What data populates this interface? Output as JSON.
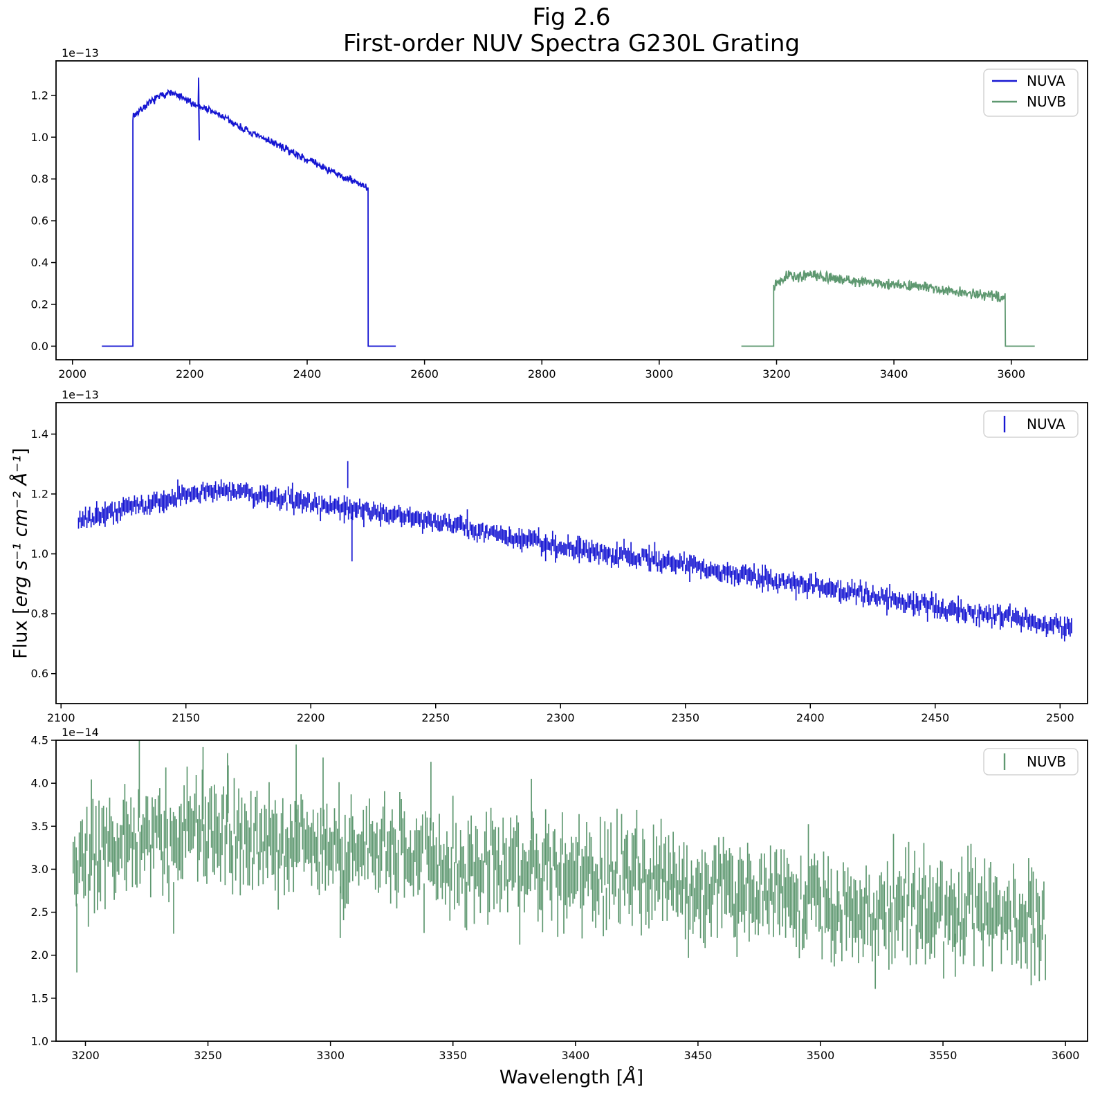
{
  "figure": {
    "title_line1": "Fig 2.6",
    "title_line2": "First-order NUV Spectra G230L Grating",
    "ylabel": {
      "prefix": "Flux [",
      "math": "erg s⁻¹ cm⁻² Å⁻¹",
      "suffix": "]"
    },
    "xlabel": {
      "prefix": "Wavelength [",
      "math": "Å",
      "suffix": "]"
    }
  },
  "colors": {
    "nuva": "#1616d2",
    "nuvb": "#5e9870",
    "legend_edge": "#d4d4d4",
    "axes": "#000000"
  },
  "chart_data": [
    {
      "name": "overview",
      "type": "line",
      "title": "",
      "xlim": [
        1972,
        3730
      ],
      "ylim": [
        -0.065,
        1.365
      ],
      "offset_label": "1e−13",
      "grid": false,
      "x_ticks": [
        {
          "v": 2000,
          "t": "2000"
        },
        {
          "v": 2200,
          "t": "2200"
        },
        {
          "v": 2400,
          "t": "2400"
        },
        {
          "v": 2600,
          "t": "2600"
        },
        {
          "v": 2800,
          "t": "2800"
        },
        {
          "v": 3000,
          "t": "3000"
        },
        {
          "v": 3200,
          "t": "3200"
        },
        {
          "v": 3400,
          "t": "3400"
        },
        {
          "v": 3600,
          "t": "3600"
        }
      ],
      "y_ticks": [
        {
          "v": 0.0,
          "t": "0.0"
        },
        {
          "v": 0.2,
          "t": "0.2"
        },
        {
          "v": 0.4,
          "t": "0.4"
        },
        {
          "v": 0.6,
          "t": "0.6"
        },
        {
          "v": 0.8,
          "t": "0.8"
        },
        {
          "v": 1.0,
          "t": "1.0"
        },
        {
          "v": 1.2,
          "t": "1.2"
        }
      ],
      "legend": {
        "position": "upper right",
        "entries": [
          {
            "label": "NUVA",
            "marker": "line",
            "color": "#1616d2"
          },
          {
            "label": "NUVB",
            "marker": "line",
            "color": "#5e9870"
          }
        ]
      },
      "series": [
        {
          "name": "NUVA",
          "style": "line",
          "color": "#1616d2",
          "seed": 7,
          "noise": 0.022,
          "dx": 0.8,
          "segments": [
            {
              "type": "flat",
              "x0": 2050,
              "x1": 2103,
              "y": 0.0
            },
            {
              "type": "env",
              "x0": 2103,
              "x1": 2504,
              "anchors": [
                [
                  2103,
                  1.1
                ],
                [
                  2107,
                  1.11
                ],
                [
                  2125,
                  1.15
                ],
                [
                  2145,
                  1.19
                ],
                [
                  2165,
                  1.215
                ],
                [
                  2185,
                  1.19
                ],
                [
                  2205,
                  1.16
                ],
                [
                  2225,
                  1.14
                ],
                [
                  2255,
                  1.1
                ],
                [
                  2285,
                  1.05
                ],
                [
                  2310,
                  1.01
                ],
                [
                  2335,
                  0.985
                ],
                [
                  2365,
                  0.94
                ],
                [
                  2395,
                  0.9
                ],
                [
                  2425,
                  0.86
                ],
                [
                  2455,
                  0.815
                ],
                [
                  2485,
                  0.785
                ],
                [
                  2504,
                  0.75
                ]
              ],
              "spikes": [
                {
                  "x": 2215,
                  "hi": 1.285,
                  "lo": 0.985
                }
              ]
            },
            {
              "type": "flat",
              "x0": 2504,
              "x1": 2551,
              "y": 0.0
            }
          ]
        },
        {
          "name": "NUVB",
          "style": "line",
          "color": "#5e9870",
          "seed": 13,
          "noise": 0.03,
          "dx": 0.8,
          "segments": [
            {
              "type": "flat",
              "x0": 3140,
              "x1": 3195,
              "y": 0.0
            },
            {
              "type": "env",
              "x0": 3195,
              "x1": 3590,
              "anchors": [
                [
                  3195,
                  0.295
                ],
                [
                  3205,
                  0.315
                ],
                [
                  3218,
                  0.34
                ],
                [
                  3235,
                  0.33
                ],
                [
                  3255,
                  0.34
                ],
                [
                  3275,
                  0.335
                ],
                [
                  3290,
                  0.325
                ],
                [
                  3310,
                  0.32
                ],
                [
                  3335,
                  0.31
                ],
                [
                  3365,
                  0.305
                ],
                [
                  3395,
                  0.295
                ],
                [
                  3425,
                  0.29
                ],
                [
                  3455,
                  0.28
                ],
                [
                  3490,
                  0.265
                ],
                [
                  3520,
                  0.255
                ],
                [
                  3555,
                  0.245
                ],
                [
                  3590,
                  0.235
                ]
              ],
              "spikes": []
            },
            {
              "type": "flat",
              "x0": 3590,
              "x1": 3640,
              "y": 0.0
            }
          ]
        }
      ]
    },
    {
      "name": "nuva-detail",
      "type": "errorbar",
      "title": "",
      "xlim": [
        2098,
        2511
      ],
      "ylim": [
        0.5,
        1.505
      ],
      "offset_label": "1e−13",
      "grid": false,
      "x_ticks": [
        {
          "v": 2100,
          "t": "2100"
        },
        {
          "v": 2150,
          "t": "2150"
        },
        {
          "v": 2200,
          "t": "2200"
        },
        {
          "v": 2250,
          "t": "2250"
        },
        {
          "v": 2300,
          "t": "2300"
        },
        {
          "v": 2350,
          "t": "2350"
        },
        {
          "v": 2400,
          "t": "2400"
        },
        {
          "v": 2450,
          "t": "2450"
        },
        {
          "v": 2500,
          "t": "2500"
        }
      ],
      "y_ticks": [
        {
          "v": 0.6,
          "t": "0.6"
        },
        {
          "v": 0.8,
          "t": "0.8"
        },
        {
          "v": 1.0,
          "t": "1.0"
        },
        {
          "v": 1.2,
          "t": "1.2"
        },
        {
          "v": 1.4,
          "t": "1.4"
        }
      ],
      "legend": {
        "position": "upper right",
        "entries": [
          {
            "label": "NUVA",
            "marker": "vbar",
            "color": "#1616d2"
          }
        ]
      },
      "series": [
        {
          "name": "NUVA",
          "style": "bars",
          "color": "#1616d2",
          "seed": 21,
          "x0": 2107,
          "x1": 2505,
          "dx": 0.56,
          "center_noise": 0.022,
          "err_base": 0.013,
          "err_var": 0.014,
          "err_spike_p": 0.05,
          "err_spike": 0.02,
          "anchors": [
            [
              2107,
              1.11
            ],
            [
              2125,
              1.15
            ],
            [
              2145,
              1.19
            ],
            [
              2165,
              1.215
            ],
            [
              2185,
              1.19
            ],
            [
              2205,
              1.16
            ],
            [
              2225,
              1.14
            ],
            [
              2255,
              1.1
            ],
            [
              2285,
              1.05
            ],
            [
              2310,
              1.01
            ],
            [
              2335,
              0.985
            ],
            [
              2365,
              0.94
            ],
            [
              2395,
              0.9
            ],
            [
              2425,
              0.86
            ],
            [
              2455,
              0.815
            ],
            [
              2485,
              0.785
            ],
            [
              2505,
              0.745
            ]
          ],
          "spikes": [
            {
              "x": 2214.8,
              "c": 1.265,
              "e": 0.045
            },
            {
              "x": 2216.5,
              "c": 1.05,
              "e": 0.075
            }
          ]
        }
      ]
    },
    {
      "name": "nuvb-detail",
      "type": "errorbar",
      "title": "",
      "xlim": [
        3188,
        3609
      ],
      "ylim": [
        1.0,
        4.5
      ],
      "offset_label": "1e−14",
      "grid": false,
      "x_ticks": [
        {
          "v": 3200,
          "t": "3200"
        },
        {
          "v": 3250,
          "t": "3250"
        },
        {
          "v": 3300,
          "t": "3300"
        },
        {
          "v": 3350,
          "t": "3350"
        },
        {
          "v": 3400,
          "t": "3400"
        },
        {
          "v": 3450,
          "t": "3450"
        },
        {
          "v": 3500,
          "t": "3500"
        },
        {
          "v": 3550,
          "t": "3550"
        },
        {
          "v": 3600,
          "t": "3600"
        }
      ],
      "y_ticks": [
        {
          "v": 1.0,
          "t": "1.0"
        },
        {
          "v": 1.5,
          "t": "1.5"
        },
        {
          "v": 2.0,
          "t": "2.0"
        },
        {
          "v": 2.5,
          "t": "2.5"
        },
        {
          "v": 3.0,
          "t": "3.0"
        },
        {
          "v": 3.5,
          "t": "3.5"
        },
        {
          "v": 4.0,
          "t": "4.0"
        },
        {
          "v": 4.5,
          "t": "4.5"
        }
      ],
      "legend": {
        "position": "upper right",
        "entries": [
          {
            "label": "NUVB",
            "marker": "vbar",
            "color": "#5e9870"
          }
        ]
      },
      "series": [
        {
          "name": "NUVB",
          "style": "bars",
          "color": "#5e9870",
          "seed": 33,
          "x0": 3195,
          "x1": 3592,
          "dx": 0.62,
          "center_noise": 0.45,
          "err_base": 0.18,
          "err_var": 0.2,
          "err_spike_p": 0.06,
          "err_spike": 0.18,
          "anchors": [
            [
              3195,
              2.95
            ],
            [
              3205,
              3.15
            ],
            [
              3218,
              3.4
            ],
            [
              3235,
              3.3
            ],
            [
              3255,
              3.4
            ],
            [
              3275,
              3.35
            ],
            [
              3290,
              3.25
            ],
            [
              3310,
              3.2
            ],
            [
              3335,
              3.1
            ],
            [
              3365,
              3.05
            ],
            [
              3395,
              2.95
            ],
            [
              3425,
              2.9
            ],
            [
              3455,
              2.8
            ],
            [
              3490,
              2.65
            ],
            [
              3520,
              2.55
            ],
            [
              3555,
              2.45
            ],
            [
              3592,
              2.35
            ]
          ],
          "spikes": [
            {
              "x": 3196.5,
              "c": 2.2,
              "e": 0.4
            },
            {
              "x": 3222,
              "c": 4.05,
              "e": 0.45
            },
            {
              "x": 3248,
              "c": 4.0,
              "e": 0.42
            },
            {
              "x": 3258,
              "c": 3.95,
              "e": 0.4
            },
            {
              "x": 3286,
              "c": 4.0,
              "e": 0.45
            },
            {
              "x": 3297,
              "c": 3.9,
              "e": 0.4
            },
            {
              "x": 3236,
              "c": 2.55,
              "e": 0.3
            },
            {
              "x": 3304,
              "c": 2.5,
              "e": 0.3
            },
            {
              "x": 3341,
              "c": 3.85,
              "e": 0.4
            },
            {
              "x": 3382,
              "c": 3.7,
              "e": 0.35
            },
            {
              "x": 3555,
              "c": 2.0,
              "e": 0.25
            },
            {
              "x": 3586,
              "c": 1.95,
              "e": 0.3
            }
          ]
        }
      ]
    }
  ]
}
